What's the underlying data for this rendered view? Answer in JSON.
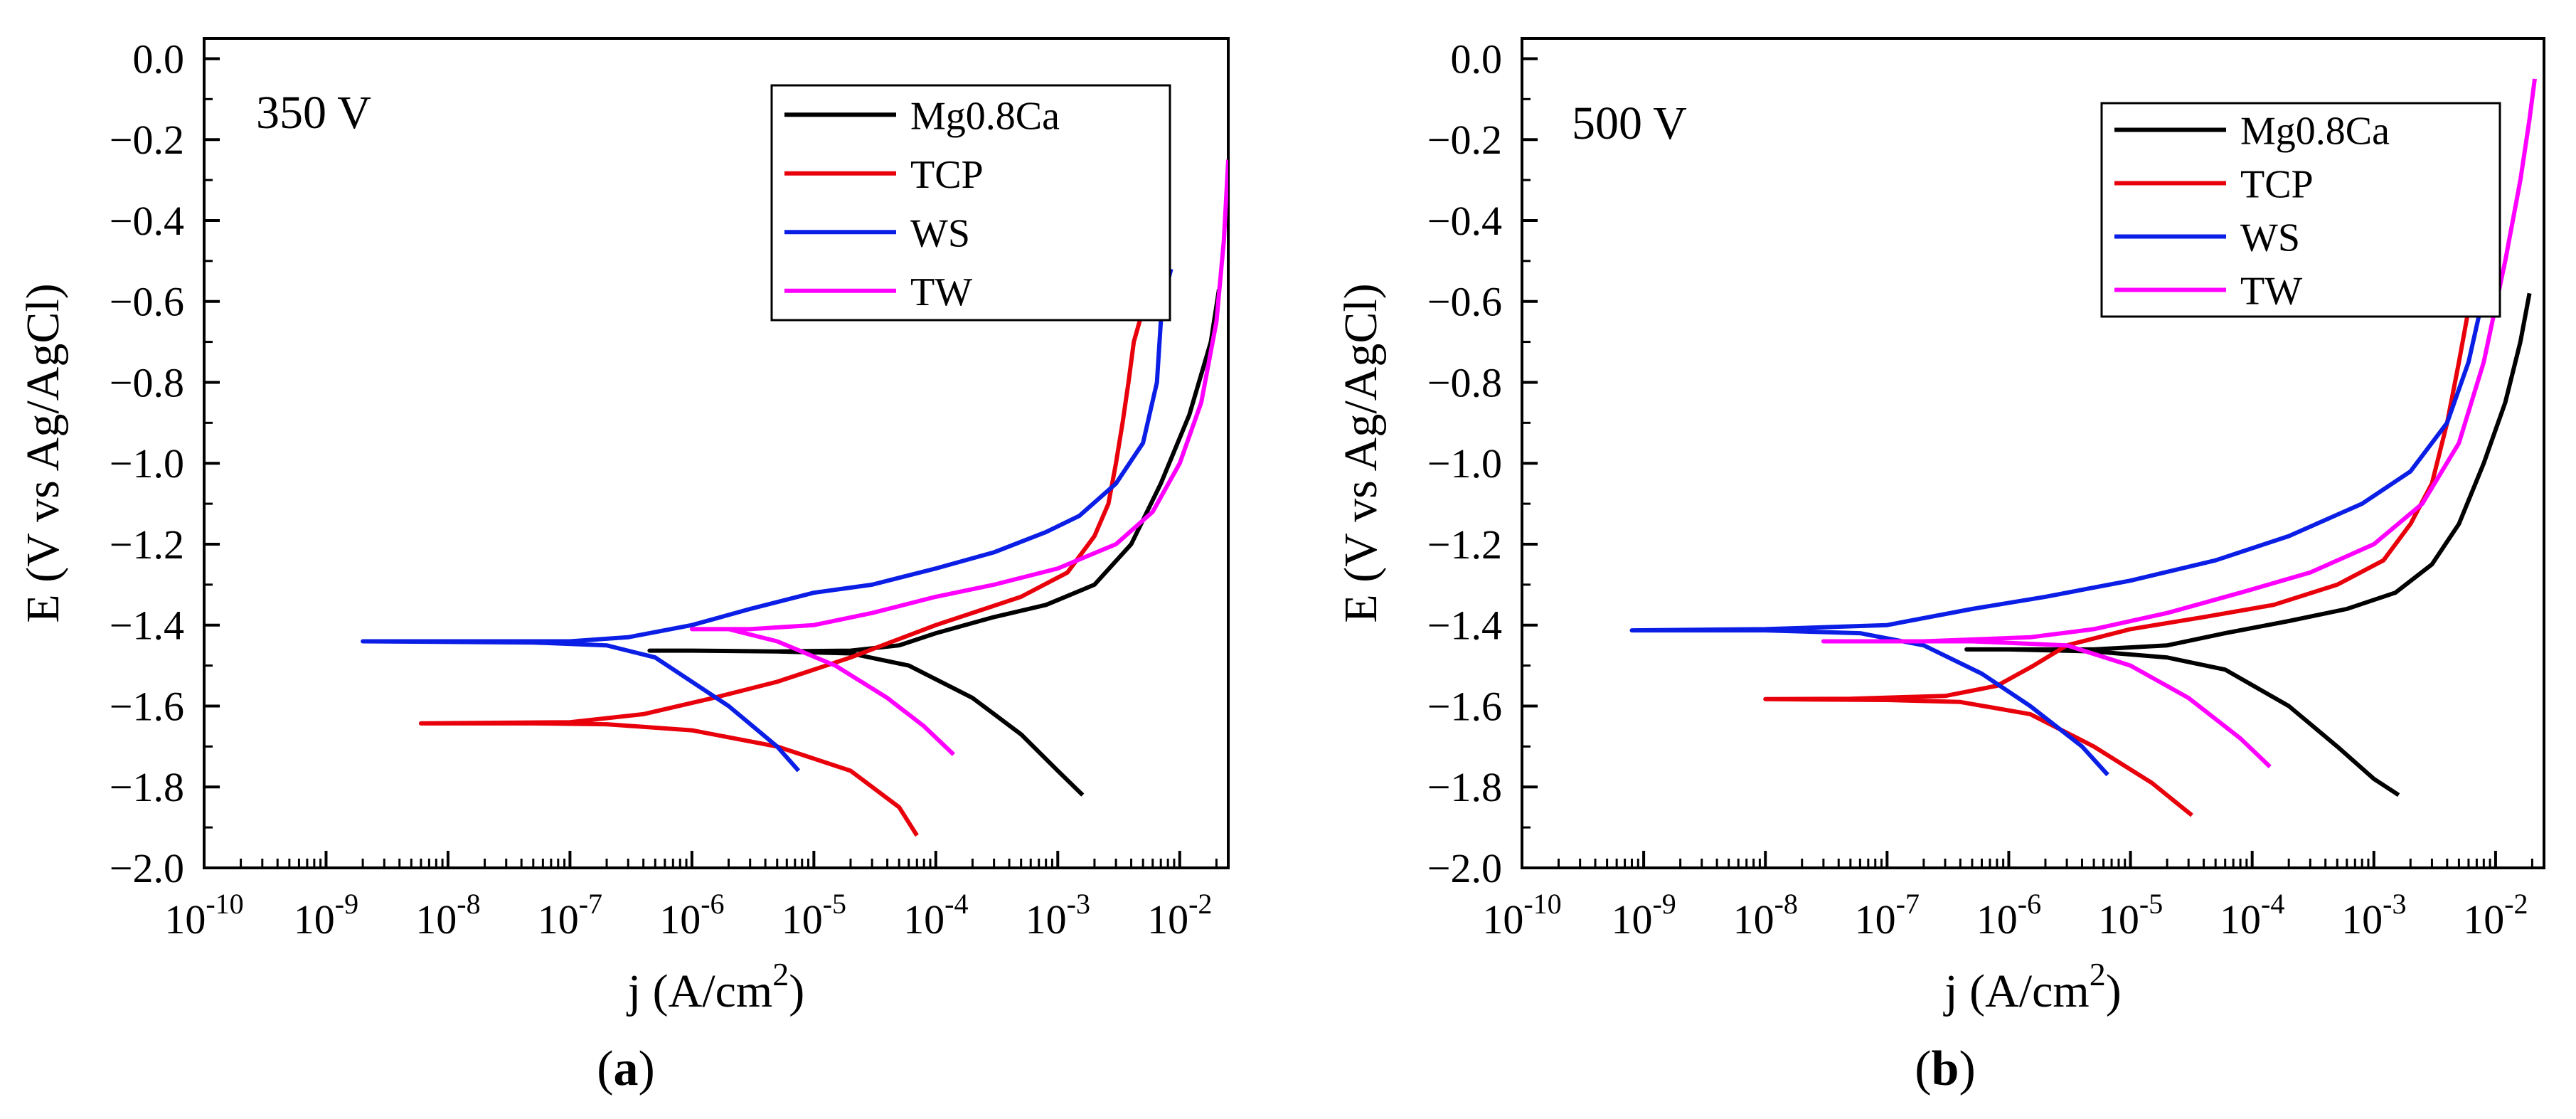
{
  "chart_data": [
    {
      "type": "line",
      "panel_label": "a",
      "annotation": "350 V",
      "xlabel": "j (A/cm",
      "xlabel_sup": "2",
      "xlabel_close": ")",
      "ylabel": "E (V vs Ag/AgCl)",
      "xscale": "log",
      "xlim": [
        1e-10,
        0.025
      ],
      "ylim": [
        -2.0,
        0.05
      ],
      "x_ticks": [
        {
          "base": "10",
          "exp": "-10"
        },
        {
          "base": "10",
          "exp": "-9"
        },
        {
          "base": "10",
          "exp": "-8"
        },
        {
          "base": "10",
          "exp": "-7"
        },
        {
          "base": "10",
          "exp": "-6"
        },
        {
          "base": "10",
          "exp": "-5"
        },
        {
          "base": "10",
          "exp": "-4"
        },
        {
          "base": "10",
          "exp": "-3"
        },
        {
          "base": "10",
          "exp": "-2"
        }
      ],
      "y_ticks": [
        "0.0",
        "−0.2",
        "−0.4",
        "−0.6",
        "−0.8",
        "−1.0",
        "−1.2",
        "−1.4",
        "−1.6",
        "−1.8",
        "−2.0"
      ],
      "legend_position": "top-right",
      "series": [
        {
          "name": "Mg0.8Ca",
          "color": "#000000",
          "points": [
            [
              0.0016,
              -1.82
            ],
            [
              0.001,
              -1.76
            ],
            [
              0.0005,
              -1.67
            ],
            [
              0.0002,
              -1.58
            ],
            [
              6e-05,
              -1.5
            ],
            [
              2e-05,
              -1.47
            ],
            [
              5e-06,
              -1.465
            ],
            [
              1e-06,
              -1.463
            ],
            [
              4.5e-07,
              -1.463
            ],
            [
              1e-06,
              -1.463
            ],
            [
              5e-06,
              -1.465
            ],
            [
              2e-05,
              -1.463
            ],
            [
              5e-05,
              -1.45
            ],
            [
              0.0001,
              -1.42
            ],
            [
              0.0003,
              -1.38
            ],
            [
              0.0008,
              -1.35
            ],
            [
              0.002,
              -1.3
            ],
            [
              0.004,
              -1.2
            ],
            [
              0.007,
              -1.05
            ],
            [
              0.012,
              -0.88
            ],
            [
              0.018,
              -0.7
            ],
            [
              0.021,
              -0.57
            ]
          ]
        },
        {
          "name": "TCP",
          "color": "#e8000b",
          "points": [
            [
              7e-05,
              -1.92
            ],
            [
              5e-05,
              -1.85
            ],
            [
              2e-05,
              -1.76
            ],
            [
              5e-06,
              -1.7
            ],
            [
              1e-06,
              -1.66
            ],
            [
              2e-07,
              -1.645
            ],
            [
              5e-08,
              -1.643
            ],
            [
              6e-09,
              -1.643
            ],
            [
              1e-07,
              -1.64
            ],
            [
              4e-07,
              -1.62
            ],
            [
              1.5e-06,
              -1.58
            ],
            [
              5e-06,
              -1.54
            ],
            [
              2e-05,
              -1.48
            ],
            [
              0.0001,
              -1.4
            ],
            [
              0.0005,
              -1.33
            ],
            [
              0.0012,
              -1.27
            ],
            [
              0.002,
              -1.18
            ],
            [
              0.0026,
              -1.1
            ],
            [
              0.003,
              -1.0
            ],
            [
              0.0034,
              -0.9
            ],
            [
              0.0038,
              -0.8
            ],
            [
              0.0042,
              -0.7
            ],
            [
              0.005,
              -0.62
            ],
            [
              0.006,
              -0.57
            ]
          ]
        },
        {
          "name": "WS",
          "color": "#0a1ee6",
          "points": [
            [
              7.5e-06,
              -1.76
            ],
            [
              5e-06,
              -1.7
            ],
            [
              2e-06,
              -1.6
            ],
            [
              1e-06,
              -1.54
            ],
            [
              5e-07,
              -1.48
            ],
            [
              2e-07,
              -1.45
            ],
            [
              5e-08,
              -1.443
            ],
            [
              2e-09,
              -1.44
            ],
            [
              1e-08,
              -1.44
            ],
            [
              1e-07,
              -1.44
            ],
            [
              3e-07,
              -1.43
            ],
            [
              1e-06,
              -1.4
            ],
            [
              3e-06,
              -1.36
            ],
            [
              1e-05,
              -1.32
            ],
            [
              3e-05,
              -1.3
            ],
            [
              0.0001,
              -1.26
            ],
            [
              0.0003,
              -1.22
            ],
            [
              0.0008,
              -1.17
            ],
            [
              0.0015,
              -1.13
            ],
            [
              0.003,
              -1.05
            ],
            [
              0.005,
              -0.95
            ],
            [
              0.0065,
              -0.8
            ],
            [
              0.007,
              -0.65
            ],
            [
              0.0075,
              -0.58
            ],
            [
              0.0085,
              -0.52
            ]
          ]
        },
        {
          "name": "TW",
          "color": "#ff00ff",
          "points": [
            [
              0.00014,
              -1.72
            ],
            [
              8e-05,
              -1.65
            ],
            [
              4e-05,
              -1.58
            ],
            [
              1.5e-05,
              -1.5
            ],
            [
              5e-06,
              -1.44
            ],
            [
              2e-06,
              -1.41
            ],
            [
              1e-06,
              -1.41
            ],
            [
              3e-06,
              -1.41
            ],
            [
              1e-05,
              -1.4
            ],
            [
              3e-05,
              -1.37
            ],
            [
              0.0001,
              -1.33
            ],
            [
              0.0003,
              -1.3
            ],
            [
              0.001,
              -1.26
            ],
            [
              0.003,
              -1.2
            ],
            [
              0.006,
              -1.12
            ],
            [
              0.01,
              -1.0
            ],
            [
              0.015,
              -0.85
            ],
            [
              0.02,
              -0.65
            ],
            [
              0.023,
              -0.45
            ],
            [
              0.025,
              -0.25
            ]
          ]
        }
      ]
    },
    {
      "type": "line",
      "panel_label": "b",
      "annotation": "500 V",
      "xlabel": "j (A/cm",
      "xlabel_sup": "2",
      "xlabel_close": ")",
      "ylabel": "E (V vs Ag/AgCl)",
      "xscale": "log",
      "xlim": [
        1e-10,
        0.025
      ],
      "ylim": [
        -2.0,
        0.05
      ],
      "x_ticks": [
        {
          "base": "10",
          "exp": "-10"
        },
        {
          "base": "10",
          "exp": "-9"
        },
        {
          "base": "10",
          "exp": "-8"
        },
        {
          "base": "10",
          "exp": "-7"
        },
        {
          "base": "10",
          "exp": "-6"
        },
        {
          "base": "10",
          "exp": "-5"
        },
        {
          "base": "10",
          "exp": "-4"
        },
        {
          "base": "10",
          "exp": "-3"
        },
        {
          "base": "10",
          "exp": "-2"
        }
      ],
      "y_ticks": [
        "0.0",
        "−0.2",
        "−0.4",
        "−0.6",
        "−0.8",
        "−1.0",
        "−1.2",
        "−1.4",
        "−1.6",
        "−1.8",
        "−2.0"
      ],
      "legend_position": "top-right",
      "series": [
        {
          "name": "Mg0.8Ca",
          "color": "#000000",
          "points": [
            [
              0.0016,
              -1.82
            ],
            [
              0.001,
              -1.78
            ],
            [
              0.0005,
              -1.7
            ],
            [
              0.0002,
              -1.6
            ],
            [
              6e-05,
              -1.51
            ],
            [
              2e-05,
              -1.48
            ],
            [
              5e-06,
              -1.465
            ],
            [
              1e-06,
              -1.46
            ],
            [
              4.5e-07,
              -1.46
            ],
            [
              1e-06,
              -1.46
            ],
            [
              5e-06,
              -1.46
            ],
            [
              2e-05,
              -1.45
            ],
            [
              6e-05,
              -1.42
            ],
            [
              0.0002,
              -1.39
            ],
            [
              0.0006,
              -1.36
            ],
            [
              0.0015,
              -1.32
            ],
            [
              0.003,
              -1.25
            ],
            [
              0.005,
              -1.15
            ],
            [
              0.008,
              -1.0
            ],
            [
              0.012,
              -0.85
            ],
            [
              0.016,
              -0.7
            ],
            [
              0.019,
              -0.58
            ]
          ]
        },
        {
          "name": "TCP",
          "color": "#e8000b",
          "points": [
            [
              3.2e-05,
              -1.87
            ],
            [
              1.5e-05,
              -1.79
            ],
            [
              5e-06,
              -1.7
            ],
            [
              1.5e-06,
              -1.62
            ],
            [
              4e-07,
              -1.59
            ],
            [
              1e-07,
              -1.585
            ],
            [
              1e-08,
              -1.583
            ],
            [
              5e-08,
              -1.582
            ],
            [
              3e-07,
              -1.575
            ],
            [
              8e-07,
              -1.55
            ],
            [
              1.6e-06,
              -1.5
            ],
            [
              3e-06,
              -1.45
            ],
            [
              1e-05,
              -1.41
            ],
            [
              4e-05,
              -1.38
            ],
            [
              0.00015,
              -1.35
            ],
            [
              0.0005,
              -1.3
            ],
            [
              0.0012,
              -1.24
            ],
            [
              0.002,
              -1.15
            ],
            [
              0.003,
              -1.05
            ],
            [
              0.004,
              -0.9
            ],
            [
              0.005,
              -0.75
            ],
            [
              0.006,
              -0.62
            ],
            [
              0.0065,
              -0.56
            ]
          ]
        },
        {
          "name": "WS",
          "color": "#0a1ee6",
          "points": [
            [
              6.5e-06,
              -1.77
            ],
            [
              4e-06,
              -1.7
            ],
            [
              1.5e-06,
              -1.6
            ],
            [
              6e-07,
              -1.52
            ],
            [
              2e-07,
              -1.45
            ],
            [
              6e-08,
              -1.42
            ],
            [
              1e-08,
              -1.413
            ],
            [
              8e-10,
              -1.413
            ],
            [
              1e-08,
              -1.41
            ],
            [
              1e-07,
              -1.4
            ],
            [
              5e-07,
              -1.36
            ],
            [
              2e-06,
              -1.33
            ],
            [
              1e-05,
              -1.29
            ],
            [
              5e-05,
              -1.24
            ],
            [
              0.0002,
              -1.18
            ],
            [
              0.0008,
              -1.1
            ],
            [
              0.002,
              -1.02
            ],
            [
              0.004,
              -0.9
            ],
            [
              0.006,
              -0.75
            ],
            [
              0.0075,
              -0.62
            ],
            [
              0.0085,
              -0.53
            ]
          ]
        },
        {
          "name": "TW",
          "color": "#ff00ff",
          "points": [
            [
              0.00014,
              -1.75
            ],
            [
              8e-05,
              -1.68
            ],
            [
              3e-05,
              -1.58
            ],
            [
              1e-05,
              -1.5
            ],
            [
              3e-06,
              -1.45
            ],
            [
              5e-07,
              -1.44
            ],
            [
              3e-08,
              -1.44
            ],
            [
              2e-07,
              -1.44
            ],
            [
              1.5e-06,
              -1.43
            ],
            [
              5e-06,
              -1.41
            ],
            [
              2e-05,
              -1.37
            ],
            [
              8e-05,
              -1.32
            ],
            [
              0.0003,
              -1.27
            ],
            [
              0.001,
              -1.2
            ],
            [
              0.0025,
              -1.1
            ],
            [
              0.005,
              -0.95
            ],
            [
              0.008,
              -0.75
            ],
            [
              0.012,
              -0.5
            ],
            [
              0.016,
              -0.3
            ],
            [
              0.019,
              -0.15
            ],
            [
              0.021,
              -0.05
            ]
          ]
        }
      ]
    }
  ]
}
